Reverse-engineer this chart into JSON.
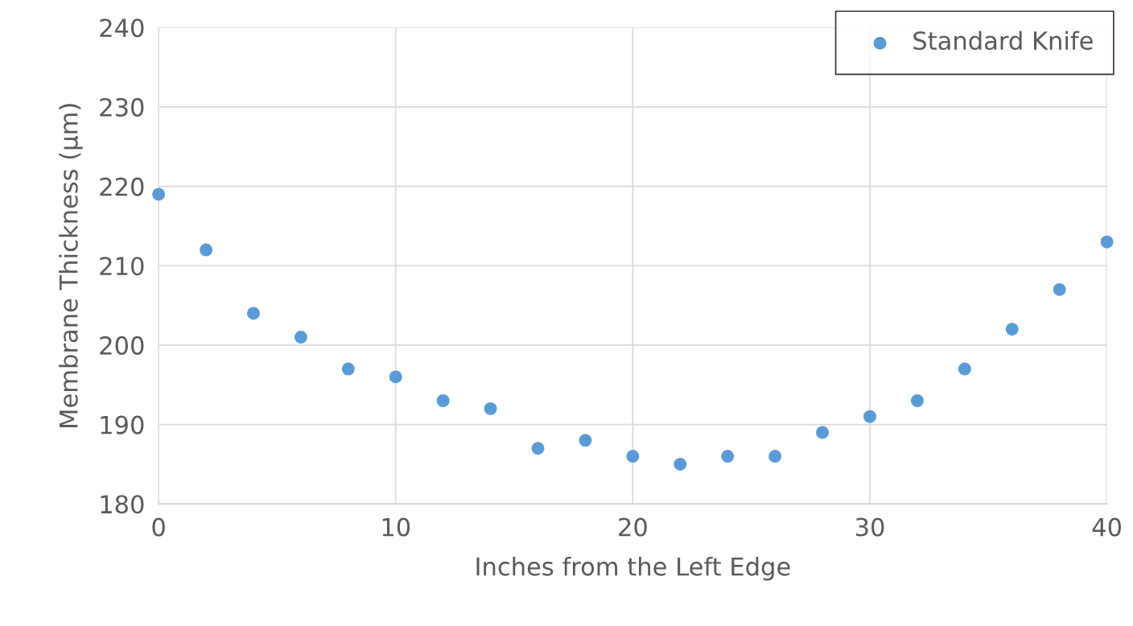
{
  "chart_data": {
    "type": "scatter",
    "xlabel": "Inches from the Left Edge",
    "ylabel": "Membrane Thickness (µm)",
    "x": [
      0,
      2,
      4,
      6,
      8,
      10,
      12,
      14,
      16,
      18,
      20,
      22,
      24,
      26,
      28,
      30,
      32,
      34,
      36,
      38,
      40
    ],
    "series": [
      {
        "name": "Standard Knife",
        "color": "#5b9bd5",
        "values": [
          219,
          212,
          204,
          201,
          197,
          196,
          193,
          192,
          187,
          188,
          186,
          185,
          186,
          186,
          189,
          191,
          193,
          197,
          202,
          207,
          213
        ]
      }
    ],
    "xlim": [
      0,
      40
    ],
    "xticks": [
      0,
      10,
      20,
      30,
      40
    ],
    "ylim": [
      180,
      240
    ],
    "yticks": [
      180,
      190,
      200,
      210,
      220,
      230,
      240
    ],
    "grid": true,
    "legend": "top right",
    "marker": "circle"
  }
}
